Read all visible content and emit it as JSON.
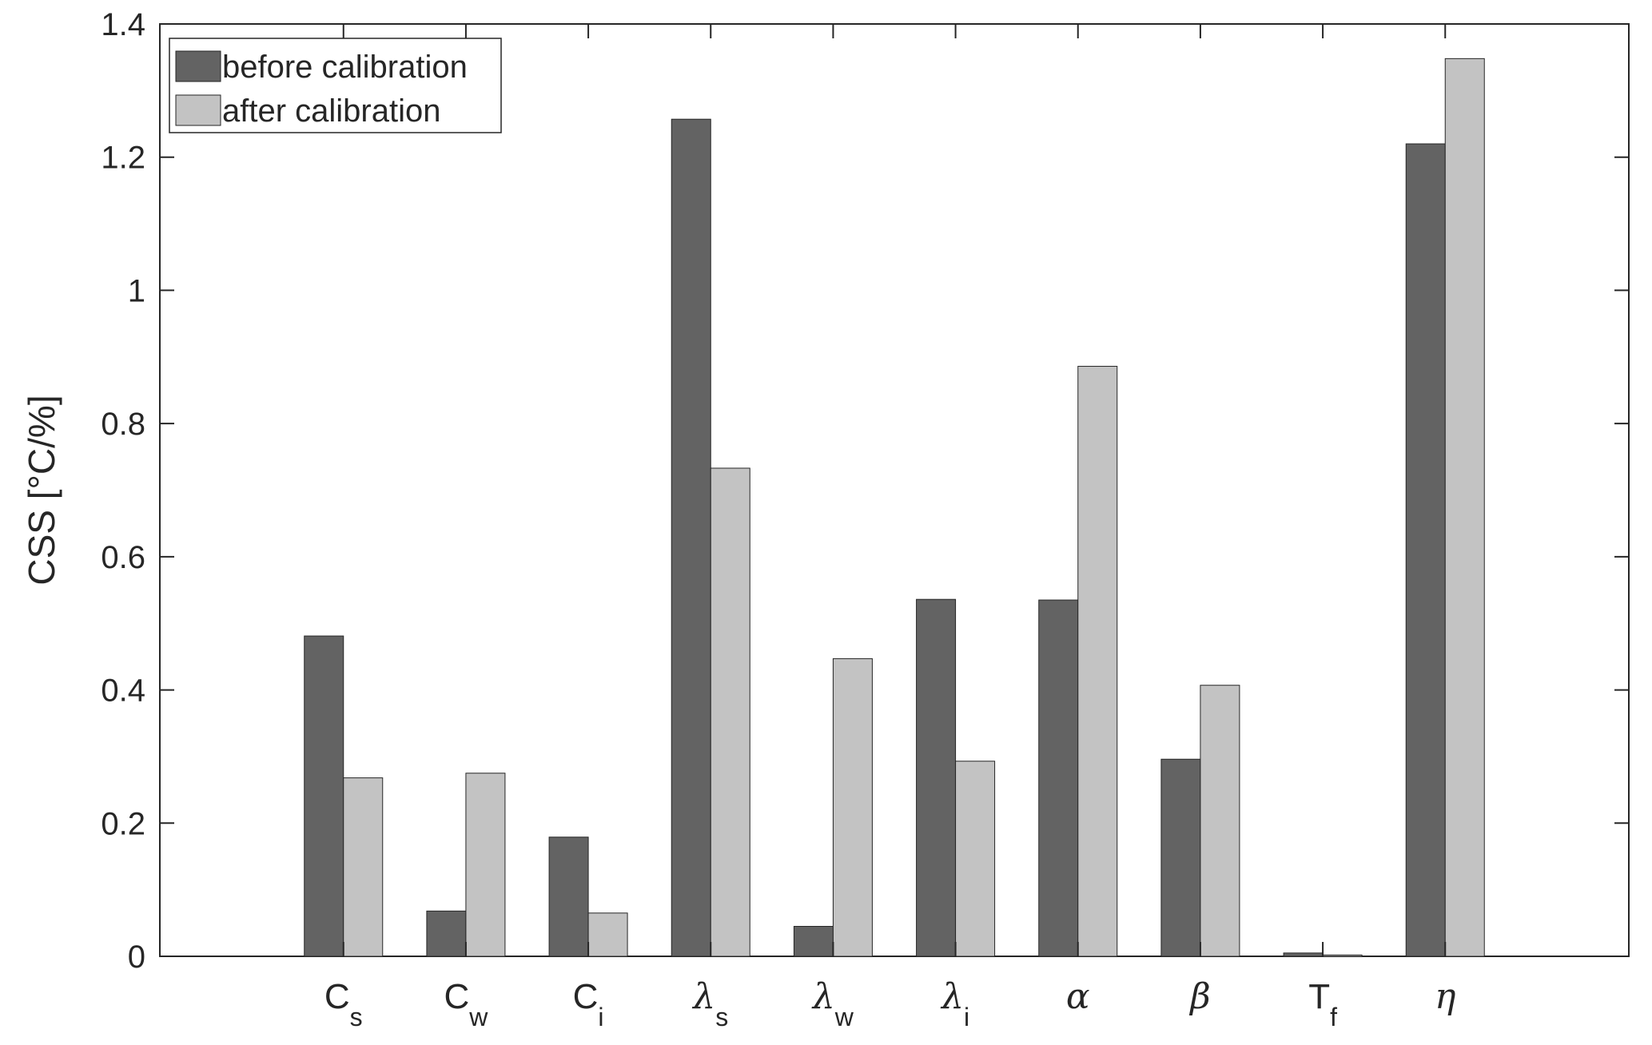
{
  "chart_data": {
    "type": "bar",
    "categories": [
      {
        "base": "C",
        "sub": "s",
        "greek": false
      },
      {
        "base": "C",
        "sub": "w",
        "greek": false
      },
      {
        "base": "C",
        "sub": "i",
        "greek": false
      },
      {
        "base": "λ",
        "sub": "s",
        "greek": true
      },
      {
        "base": "λ",
        "sub": "w",
        "greek": true
      },
      {
        "base": "λ",
        "sub": "i",
        "greek": true
      },
      {
        "base": "α",
        "sub": "",
        "greek": true
      },
      {
        "base": "β",
        "sub": "",
        "greek": true
      },
      {
        "base": "T",
        "sub": "f",
        "greek": false
      },
      {
        "base": "η",
        "sub": "",
        "greek": true
      }
    ],
    "series": [
      {
        "name": "before calibration",
        "color": "#636363",
        "values": [
          0.481,
          0.068,
          0.179,
          1.257,
          0.045,
          0.536,
          0.535,
          0.296,
          0.005,
          1.22
        ]
      },
      {
        "name": "after calibration",
        "color": "#c3c3c3",
        "values": [
          0.268,
          0.275,
          0.065,
          0.733,
          0.447,
          0.293,
          0.886,
          0.407,
          0.002,
          1.348
        ]
      }
    ],
    "ylabel": "CSS [°C/%]",
    "ylim": [
      0,
      1.4
    ],
    "yticks": [
      0,
      0.2,
      0.4,
      0.6,
      0.8,
      1,
      1.2,
      1.4
    ],
    "ytick_labels": [
      "0",
      "0.2",
      "0.4",
      "0.6",
      "0.8",
      "1",
      "1.2",
      "1.4"
    ],
    "grid": false,
    "legend_position": "top-left"
  }
}
